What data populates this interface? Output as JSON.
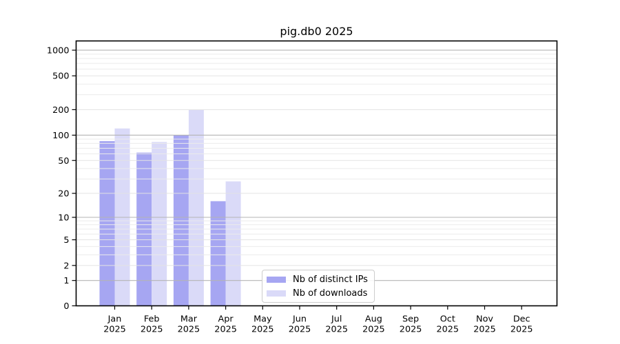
{
  "chart_data": {
    "type": "bar",
    "title": "pig.db0 2025",
    "categories": [
      "Jan",
      "Feb",
      "Mar",
      "Apr",
      "May",
      "Jun",
      "Jul",
      "Aug",
      "Sep",
      "Oct",
      "Nov",
      "Dec"
    ],
    "category_year": "2025",
    "series": [
      {
        "name": "Nb of distinct IPs",
        "color": "#a6a6f2",
        "values": [
          85,
          62,
          100,
          16,
          0,
          0,
          0,
          0,
          0,
          0,
          0,
          0
        ]
      },
      {
        "name": "Nb of downloads",
        "color": "#dadaf8",
        "values": [
          120,
          83,
          199,
          28,
          0,
          0,
          0,
          0,
          0,
          0,
          0,
          0
        ]
      }
    ],
    "y_axis": {
      "scale": "log10(1+y)",
      "ticks": [
        0,
        1,
        2,
        5,
        10,
        20,
        50,
        100,
        200,
        500,
        1000
      ],
      "minor_ticks": [
        3,
        4,
        6,
        7,
        8,
        9,
        30,
        40,
        60,
        70,
        80,
        90,
        300,
        400,
        600,
        700,
        800,
        900
      ],
      "max": 1280
    },
    "grid": {
      "major_ticks": [
        1,
        10,
        100,
        1000
      ],
      "major_color": "#b4b4b4",
      "sub_color": "#e3e3e3",
      "minor_color": "#ebebeb"
    },
    "legend": {
      "position": "lower center"
    },
    "axis_color": "#000000",
    "text_color": "#000000",
    "background": "#ffffff"
  }
}
